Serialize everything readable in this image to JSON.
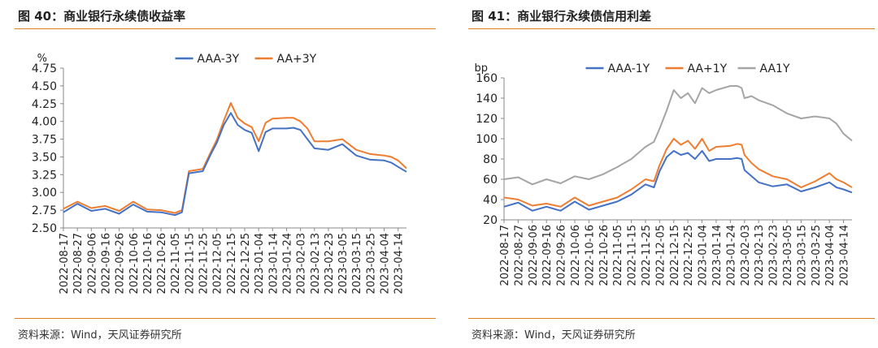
{
  "colors": {
    "accent_rule": "#e07b1f",
    "series_blue": "#4472c4",
    "series_orange": "#ed7d31",
    "series_gray": "#a5a5a5"
  },
  "left": {
    "title": "图 40：商业银行永续债收益率",
    "source": "资料来源：Wind，天风证券研究所"
  },
  "right": {
    "title": "图 41：商业银行永续债信用利差",
    "source": "资料来源：Wind，天风证券研究所"
  },
  "chart_data": [
    {
      "type": "line",
      "ylabel": "%",
      "ylim": [
        2.5,
        4.75
      ],
      "yticks": [
        "2.50",
        "2.75",
        "3.00",
        "3.25",
        "3.50",
        "3.75",
        "4.00",
        "4.25",
        "4.50",
        "4.75"
      ],
      "xticks": [
        "2022-08-17",
        "2022-08-27",
        "2022-09-06",
        "2022-09-16",
        "2022-09-26",
        "2022-10-06",
        "2022-10-16",
        "2022-10-26",
        "2022-11-05",
        "2022-11-15",
        "2022-11-25",
        "2022-12-05",
        "2022-12-15",
        "2022-12-25",
        "2023-01-04",
        "2023-01-14",
        "2023-01-24",
        "2023-02-03",
        "2023-02-13",
        "2023-02-23",
        "2023-03-05",
        "2023-03-15",
        "2023-03-25",
        "2023-04-04",
        "2023-04-14"
      ],
      "legend_position": "top",
      "series": [
        {
          "name": "AAA-3Y",
          "color": "#4472c4",
          "x": [
            "2022-08-17",
            "2022-08-27",
            "2022-09-06",
            "2022-09-16",
            "2022-09-26",
            "2022-10-06",
            "2022-10-16",
            "2022-10-26",
            "2022-11-05",
            "2022-11-10",
            "2022-11-15",
            "2022-11-25",
            "2022-12-01",
            "2022-12-05",
            "2022-12-10",
            "2022-12-15",
            "2022-12-20",
            "2022-12-25",
            "2022-12-30",
            "2023-01-04",
            "2023-01-09",
            "2023-01-14",
            "2023-01-24",
            "2023-01-29",
            "2023-02-03",
            "2023-02-08",
            "2023-02-13",
            "2023-02-23",
            "2023-03-05",
            "2023-03-15",
            "2023-03-25",
            "2023-04-04",
            "2023-04-09",
            "2023-04-14",
            "2023-04-20"
          ],
          "values": [
            2.72,
            2.84,
            2.74,
            2.77,
            2.7,
            2.83,
            2.73,
            2.72,
            2.68,
            2.72,
            3.27,
            3.3,
            3.55,
            3.7,
            3.95,
            4.12,
            3.95,
            3.88,
            3.84,
            3.58,
            3.85,
            3.9,
            3.9,
            3.91,
            3.88,
            3.75,
            3.62,
            3.6,
            3.68,
            3.52,
            3.46,
            3.45,
            3.42,
            3.36,
            3.29
          ]
        },
        {
          "name": "AA+3Y",
          "color": "#ed7d31",
          "x": [
            "2022-08-17",
            "2022-08-27",
            "2022-09-06",
            "2022-09-16",
            "2022-09-26",
            "2022-10-06",
            "2022-10-16",
            "2022-10-26",
            "2022-11-05",
            "2022-11-10",
            "2022-11-15",
            "2022-11-25",
            "2022-12-01",
            "2022-12-05",
            "2022-12-10",
            "2022-12-15",
            "2022-12-20",
            "2022-12-25",
            "2022-12-30",
            "2023-01-04",
            "2023-01-09",
            "2023-01-14",
            "2023-01-24",
            "2023-01-29",
            "2023-02-03",
            "2023-02-08",
            "2023-02-13",
            "2023-02-23",
            "2023-03-05",
            "2023-03-15",
            "2023-03-25",
            "2023-04-04",
            "2023-04-09",
            "2023-04-14",
            "2023-04-20"
          ],
          "values": [
            2.77,
            2.87,
            2.78,
            2.81,
            2.74,
            2.87,
            2.76,
            2.75,
            2.71,
            2.75,
            3.3,
            3.33,
            3.58,
            3.74,
            4.01,
            4.26,
            4.05,
            3.97,
            3.92,
            3.72,
            3.98,
            4.04,
            4.05,
            4.05,
            4.0,
            3.9,
            3.72,
            3.72,
            3.75,
            3.6,
            3.54,
            3.52,
            3.5,
            3.45,
            3.34
          ]
        }
      ]
    },
    {
      "type": "line",
      "ylabel": "bp",
      "ylim": [
        20,
        160
      ],
      "yticks": [
        "20",
        "40",
        "60",
        "80",
        "100",
        "120",
        "140",
        "160"
      ],
      "xticks": [
        "2022-08-17",
        "2022-08-27",
        "2022-09-06",
        "2022-09-16",
        "2022-09-26",
        "2022-10-06",
        "2022-10-16",
        "2022-10-26",
        "2022-11-05",
        "2022-11-15",
        "2022-11-25",
        "2022-12-05",
        "2022-12-15",
        "2022-12-25",
        "2023-01-04",
        "2023-01-14",
        "2023-01-24",
        "2023-02-03",
        "2023-02-13",
        "2023-02-23",
        "2023-03-05",
        "2023-03-15",
        "2023-03-25",
        "2023-04-04",
        "2023-04-14"
      ],
      "legend_position": "top",
      "series": [
        {
          "name": "AAA-1Y",
          "color": "#4472c4",
          "x": [
            "2022-08-17",
            "2022-08-27",
            "2022-09-06",
            "2022-09-16",
            "2022-09-26",
            "2022-10-06",
            "2022-10-16",
            "2022-10-26",
            "2022-11-05",
            "2022-11-15",
            "2022-11-25",
            "2022-12-01",
            "2022-12-05",
            "2022-12-10",
            "2022-12-15",
            "2022-12-20",
            "2022-12-25",
            "2022-12-30",
            "2023-01-04",
            "2023-01-09",
            "2023-01-14",
            "2023-01-24",
            "2023-01-29",
            "2023-02-01",
            "2023-02-03",
            "2023-02-08",
            "2023-02-13",
            "2023-02-23",
            "2023-03-05",
            "2023-03-15",
            "2023-03-25",
            "2023-04-04",
            "2023-04-09",
            "2023-04-14",
            "2023-04-20"
          ],
          "values": [
            33,
            37,
            29,
            33,
            29,
            38,
            30,
            34,
            38,
            45,
            55,
            52,
            68,
            82,
            88,
            84,
            86,
            80,
            88,
            78,
            80,
            80,
            81,
            80,
            69,
            63,
            57,
            53,
            55,
            48,
            52,
            57,
            52,
            50,
            47
          ]
        },
        {
          "name": "AA+1Y",
          "color": "#ed7d31",
          "x": [
            "2022-08-17",
            "2022-08-27",
            "2022-09-06",
            "2022-09-16",
            "2022-09-26",
            "2022-10-06",
            "2022-10-16",
            "2022-10-26",
            "2022-11-05",
            "2022-11-15",
            "2022-11-25",
            "2022-12-01",
            "2022-12-05",
            "2022-12-10",
            "2022-12-15",
            "2022-12-20",
            "2022-12-25",
            "2022-12-30",
            "2023-01-04",
            "2023-01-09",
            "2023-01-14",
            "2023-01-24",
            "2023-01-29",
            "2023-02-01",
            "2023-02-03",
            "2023-02-08",
            "2023-02-13",
            "2023-02-23",
            "2023-03-05",
            "2023-03-15",
            "2023-03-25",
            "2023-04-04",
            "2023-04-09",
            "2023-04-14",
            "2023-04-20"
          ],
          "values": [
            42,
            40,
            34,
            36,
            33,
            42,
            34,
            38,
            42,
            50,
            60,
            58,
            74,
            90,
            100,
            94,
            98,
            90,
            100,
            88,
            92,
            93,
            95,
            94,
            84,
            76,
            70,
            63,
            60,
            52,
            58,
            66,
            60,
            57,
            52
          ]
        },
        {
          "name": "AA1Y",
          "color": "#a5a5a5",
          "x": [
            "2022-08-17",
            "2022-08-27",
            "2022-09-06",
            "2022-09-16",
            "2022-09-26",
            "2022-10-06",
            "2022-10-16",
            "2022-10-26",
            "2022-11-05",
            "2022-11-15",
            "2022-11-25",
            "2022-12-01",
            "2022-12-05",
            "2022-12-10",
            "2022-12-15",
            "2022-12-20",
            "2022-12-25",
            "2022-12-30",
            "2023-01-04",
            "2023-01-09",
            "2023-01-14",
            "2023-01-24",
            "2023-01-29",
            "2023-02-01",
            "2023-02-03",
            "2023-02-08",
            "2023-02-13",
            "2023-02-23",
            "2023-03-05",
            "2023-03-15",
            "2023-03-25",
            "2023-04-04",
            "2023-04-09",
            "2023-04-14",
            "2023-04-20"
          ],
          "values": [
            60,
            62,
            55,
            60,
            56,
            63,
            60,
            65,
            72,
            80,
            92,
            97,
            110,
            128,
            148,
            140,
            145,
            135,
            150,
            145,
            148,
            152,
            152,
            150,
            140,
            142,
            138,
            133,
            125,
            120,
            122,
            120,
            115,
            105,
            98
          ]
        }
      ]
    }
  ]
}
